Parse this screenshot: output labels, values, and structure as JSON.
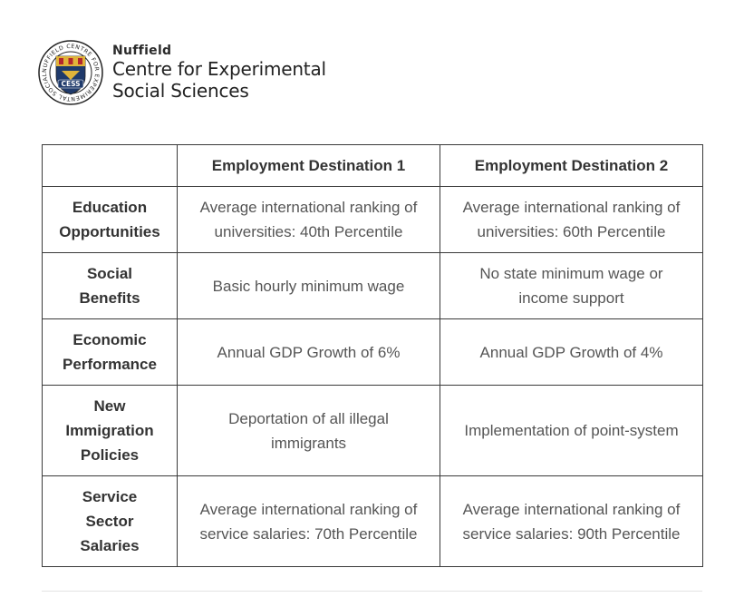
{
  "header": {
    "org_small": "Nuffield",
    "org_line1": "Centre for Experimental",
    "org_line2": "Social Sciences",
    "logo_ring_text": "NUFFIELD CENTRE FOR EXPERIMENTAL SOCIAL SCIENCES",
    "logo_badge": "CESS"
  },
  "colors": {
    "logo_navy": "#1f3a6b",
    "logo_gold": "#e0b43a",
    "logo_red": "#b3262d",
    "border": "#3a3a3a",
    "text": "#333333"
  },
  "table": {
    "columns": [
      "",
      "Employment Destination 1",
      "Employment Destination 2"
    ],
    "rows": [
      {
        "label": [
          "Education",
          "Opportunities"
        ],
        "dest1": [
          "Average international ranking of",
          "universities: 40th Percentile"
        ],
        "dest2": [
          "Average international ranking of",
          "universities: 60th Percentile"
        ]
      },
      {
        "label": [
          "Social",
          "Benefits"
        ],
        "dest1": [
          "Basic hourly minimum wage"
        ],
        "dest2": [
          "No state minimum wage or",
          "income support"
        ]
      },
      {
        "label": [
          "Economic",
          "Performance"
        ],
        "dest1": [
          "Annual GDP Growth of 6%"
        ],
        "dest2": [
          "Annual GDP Growth of 4%"
        ]
      },
      {
        "label": [
          "New",
          "Immigration",
          "Policies"
        ],
        "dest1": [
          "Deportation of all illegal",
          "immigrants"
        ],
        "dest2": [
          "Implementation of point-system"
        ]
      },
      {
        "label": [
          "Service",
          "Sector",
          "Salaries"
        ],
        "dest1": [
          "Average international ranking of",
          "service salaries: 70th Percentile"
        ],
        "dest2": [
          "Average international ranking of",
          "service salaries: 90th Percentile"
        ]
      }
    ]
  }
}
